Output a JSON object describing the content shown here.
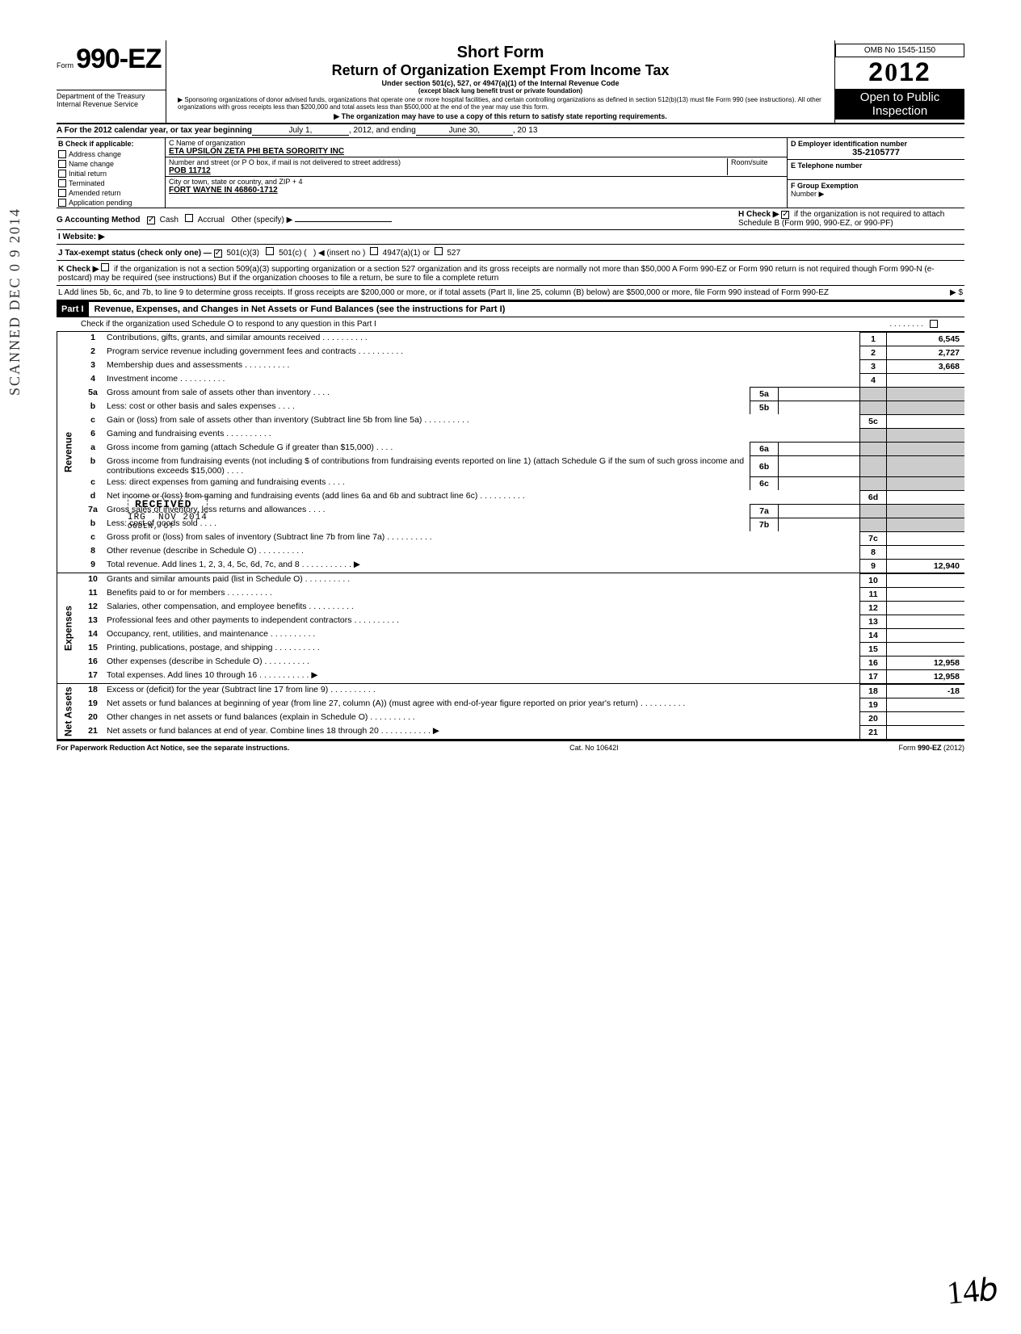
{
  "omb": "OMB No 1545-1150",
  "form_prefix": "Form",
  "form_number": "990-EZ",
  "year_display": "2012",
  "short_form": "Short Form",
  "return_title": "Return of Organization Exempt From Income Tax",
  "under_section": "Under section 501(c), 527, or 4947(a)(1) of the Internal Revenue Code",
  "except": "(except black lung benefit trust or private foundation)",
  "sponsor_line": "▶ Sponsoring organizations of donor advised funds, organizations that operate one or more hospital facilities, and certain controlling organizations as defined in section 512(b)(13) must file Form 990 (see instructions). All other organizations with gross receipts less than $200,000 and total assets less than $500,000 at the end of the year may use this form.",
  "copy_line": "▶ The organization may have to use a copy of this return to satisfy state reporting requirements.",
  "dept1": "Department of the Treasury",
  "dept2": "Internal Revenue Service",
  "open_public1": "Open to Public",
  "open_public2": "Inspection",
  "rowA_label": "A  For the 2012 calendar year, or tax year beginning",
  "rowA_begin": "July 1,",
  "rowA_mid": ", 2012, and ending",
  "rowA_end": "June 30,",
  "rowA_year": ", 20   13",
  "B_label": "B  Check if applicable:",
  "B_items": [
    "Address change",
    "Name change",
    "Initial return",
    "Terminated",
    "Amended return",
    "Application pending"
  ],
  "C_label": "C  Name of organization",
  "C_name": "ETA UPSILON ZETA PHI BETA SORORITY INC",
  "C_addr_label": "Number and street (or P O  box, if mail is not delivered to street address)",
  "C_room": "Room/suite",
  "C_addr": "POB 11712",
  "C_city_label": "City or town, state or country, and ZIP + 4",
  "C_city": "FORT WAYNE  IN  46860-1712",
  "D_label": "D Employer identification number",
  "D_value": "35-2105777",
  "E_label": "E Telephone number",
  "F_label": "F Group Exemption",
  "F_number": "Number ▶",
  "G_label": "G  Accounting Method",
  "G_cash": "Cash",
  "G_accrual": "Accrual",
  "G_other": "Other (specify) ▶",
  "H_label": "H  Check ▶",
  "H_text": "if the organization is not required to attach Schedule B (Form 990, 990-EZ, or 990-PF)",
  "I_label": "I   Website: ▶",
  "J_label": "J  Tax-exempt status (check only one) —",
  "J_501c3": "501(c)(3)",
  "J_501c": "501(c) (",
  "J_insert": ") ◀ (insert no )",
  "J_4947": "4947(a)(1) or",
  "J_527": "527",
  "K_label": "K Check ▶",
  "K_text": "if the organization is not a section 509(a)(3) supporting organization or a section 527 organization and its gross receipts are normally not more than $50,000  A Form 990-EZ or Form 990 return is not required though Form 990-N (e-postcard) may be required (see instructions)  But if the organization chooses to file a return, be sure to file a complete return",
  "L_text": "L  Add lines 5b, 6c, and 7b, to line 9 to determine gross receipts. If gross receipts are $200,000 or more, or if total assets (Part II, line 25, column (B) below) are $500,000 or more, file Form 990 instead of Form 990-EZ",
  "L_arrow": "▶  $",
  "part1_label": "Part I",
  "part1_title": "Revenue, Expenses, and Changes in Net Assets or Fund Balances (see the instructions for Part I)",
  "part1_check": "Check if the organization used Schedule O to respond to any question in this Part I",
  "side_revenue": "Revenue",
  "side_expenses": "Expenses",
  "side_netassets": "Net Assets",
  "lines": {
    "l1": {
      "n": "1",
      "t": "Contributions, gifts, grants, and similar amounts received",
      "rn": "1",
      "rv": "6,545"
    },
    "l2": {
      "n": "2",
      "t": "Program service revenue including government fees and contracts",
      "rn": "2",
      "rv": "2,727"
    },
    "l3": {
      "n": "3",
      "t": "Membership dues and assessments",
      "rn": "3",
      "rv": "3,668"
    },
    "l4": {
      "n": "4",
      "t": "Investment income",
      "rn": "4",
      "rv": ""
    },
    "l5a": {
      "n": "5a",
      "t": "Gross amount from sale of assets other than inventory",
      "mn": "5a"
    },
    "l5b": {
      "n": "b",
      "t": "Less: cost or other basis and sales expenses",
      "mn": "5b"
    },
    "l5c": {
      "n": "c",
      "t": "Gain or (loss) from sale of assets other than inventory (Subtract line 5b from line 5a)",
      "rn": "5c",
      "rv": ""
    },
    "l6": {
      "n": "6",
      "t": "Gaming and fundraising events"
    },
    "l6a": {
      "n": "a",
      "t": "Gross income from gaming (attach Schedule G if greater than $15,000)",
      "mn": "6a"
    },
    "l6b": {
      "n": "b",
      "t": "Gross income from fundraising events (not including  $                    of contributions from fundraising events reported on line 1) (attach Schedule G if the sum of such gross income and contributions exceeds $15,000)",
      "mn": "6b"
    },
    "l6c": {
      "n": "c",
      "t": "Less: direct expenses from gaming and fundraising events",
      "mn": "6c"
    },
    "l6d": {
      "n": "d",
      "t": "Net income or (loss) from gaming and fundraising events (add lines 6a and 6b and subtract line 6c)",
      "rn": "6d",
      "rv": ""
    },
    "l7a": {
      "n": "7a",
      "t": "Gross sales of inventory, less returns and allowances",
      "mn": "7a"
    },
    "l7b": {
      "n": "b",
      "t": "Less: cost of goods sold",
      "mn": "7b"
    },
    "l7c": {
      "n": "c",
      "t": "Gross profit or (loss) from sales of inventory (Subtract line 7b from line 7a)",
      "rn": "7c",
      "rv": ""
    },
    "l8": {
      "n": "8",
      "t": "Other revenue (describe in Schedule O)",
      "rn": "8",
      "rv": ""
    },
    "l9": {
      "n": "9",
      "t": "Total revenue. Add lines 1, 2, 3, 4, 5c, 6d, 7c, and 8",
      "rn": "9",
      "rv": "12,940",
      "arrow": true
    },
    "l10": {
      "n": "10",
      "t": "Grants and similar amounts paid (list in Schedule O)",
      "rn": "10",
      "rv": ""
    },
    "l11": {
      "n": "11",
      "t": "Benefits paid to or for members",
      "rn": "11",
      "rv": ""
    },
    "l12": {
      "n": "12",
      "t": "Salaries, other compensation, and employee benefits",
      "rn": "12",
      "rv": ""
    },
    "l13": {
      "n": "13",
      "t": "Professional fees and other payments to independent contractors",
      "rn": "13",
      "rv": ""
    },
    "l14": {
      "n": "14",
      "t": "Occupancy, rent, utilities, and maintenance",
      "rn": "14",
      "rv": ""
    },
    "l15": {
      "n": "15",
      "t": "Printing, publications, postage, and shipping",
      "rn": "15",
      "rv": ""
    },
    "l16": {
      "n": "16",
      "t": "Other expenses (describe in Schedule O)",
      "rn": "16",
      "rv": "12,958"
    },
    "l17": {
      "n": "17",
      "t": "Total expenses. Add lines 10 through 16",
      "rn": "17",
      "rv": "12,958",
      "arrow": true
    },
    "l18": {
      "n": "18",
      "t": "Excess or (deficit) for the year (Subtract line 17 from line 9)",
      "rn": "18",
      "rv": "-18"
    },
    "l19": {
      "n": "19",
      "t": "Net assets or fund balances at beginning of year (from line 27, column (A)) (must agree with end-of-year figure reported on prior year's return)",
      "rn": "19",
      "rv": ""
    },
    "l20": {
      "n": "20",
      "t": "Other changes in net assets or fund balances (explain in Schedule O)",
      "rn": "20",
      "rv": ""
    },
    "l21": {
      "n": "21",
      "t": "Net assets or fund balances at end of year. Combine lines 18 through 20",
      "rn": "21",
      "rv": "",
      "arrow": true
    }
  },
  "footer_left": "For Paperwork Reduction Act Notice, see the separate instructions.",
  "footer_mid": "Cat. No  10642I",
  "footer_right": "Form 990-EZ (2012)",
  "stamp_received": "RECEIVED",
  "stamp_date": "NOV    2014",
  "scanned": "SCANNED DEC 0 9 2014"
}
